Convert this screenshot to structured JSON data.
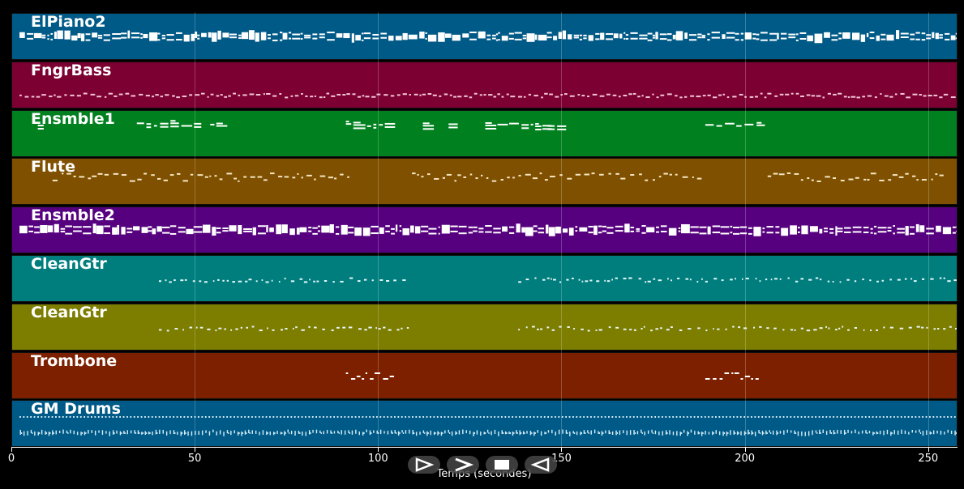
{
  "tracks": [
    {
      "name": "ElPiano2",
      "color": "#005a87",
      "pattern": "dense",
      "segments": [
        [
          2,
          258
        ]
      ]
    },
    {
      "name": "FngrBass",
      "color": "#7d0032",
      "pattern": "bass",
      "segments": [
        [
          2,
          258
        ]
      ]
    },
    {
      "name": "Ensmble1",
      "color": "#00801e",
      "pattern": "pad",
      "segments": [
        [
          7,
          8
        ],
        [
          34,
          52
        ],
        [
          54,
          58
        ],
        [
          91,
          104
        ],
        [
          112,
          113
        ],
        [
          119,
          122
        ],
        [
          129,
          145
        ],
        [
          146,
          150
        ],
        [
          189,
          204
        ]
      ]
    },
    {
      "name": "Flute",
      "color": "#7f5000",
      "pattern": "melody",
      "segments": [
        [
          11,
          92
        ],
        [
          109,
          187
        ],
        [
          206,
          254
        ]
      ]
    },
    {
      "name": "Ensmble2",
      "color": "#56007f",
      "pattern": "dense",
      "segments": [
        [
          2,
          258
        ]
      ]
    },
    {
      "name": "CleanGtr",
      "color": "#007e7e",
      "pattern": "guitar",
      "segments": [
        [
          40,
          108
        ],
        [
          138,
          258
        ]
      ]
    },
    {
      "name": "CleanGtr",
      "color": "#7d7d00",
      "pattern": "guitar",
      "segments": [
        [
          40,
          108
        ],
        [
          138,
          258
        ]
      ]
    },
    {
      "name": "Trombone",
      "color": "#7d2000",
      "pattern": "brass",
      "segments": [
        [
          91,
          104
        ],
        [
          189,
          204
        ]
      ]
    },
    {
      "name": "GM Drums",
      "color": "#005a87",
      "pattern": "drums",
      "segments": [
        [
          2,
          258
        ]
      ]
    }
  ],
  "axis": {
    "label": "Temps (secondes)",
    "range": [
      0,
      258
    ],
    "ticks": [
      {
        "value": 0,
        "label": "0"
      },
      {
        "value": 50,
        "label": "50"
      },
      {
        "value": 100,
        "label": "100"
      },
      {
        "value": 150,
        "label": "150"
      },
      {
        "value": 200,
        "label": "200"
      },
      {
        "value": 250,
        "label": "250"
      }
    ]
  },
  "controls": [
    {
      "name": "play-icon"
    },
    {
      "name": "fast-forward-icon"
    },
    {
      "name": "stop-icon"
    },
    {
      "name": "rewind-icon"
    }
  ]
}
